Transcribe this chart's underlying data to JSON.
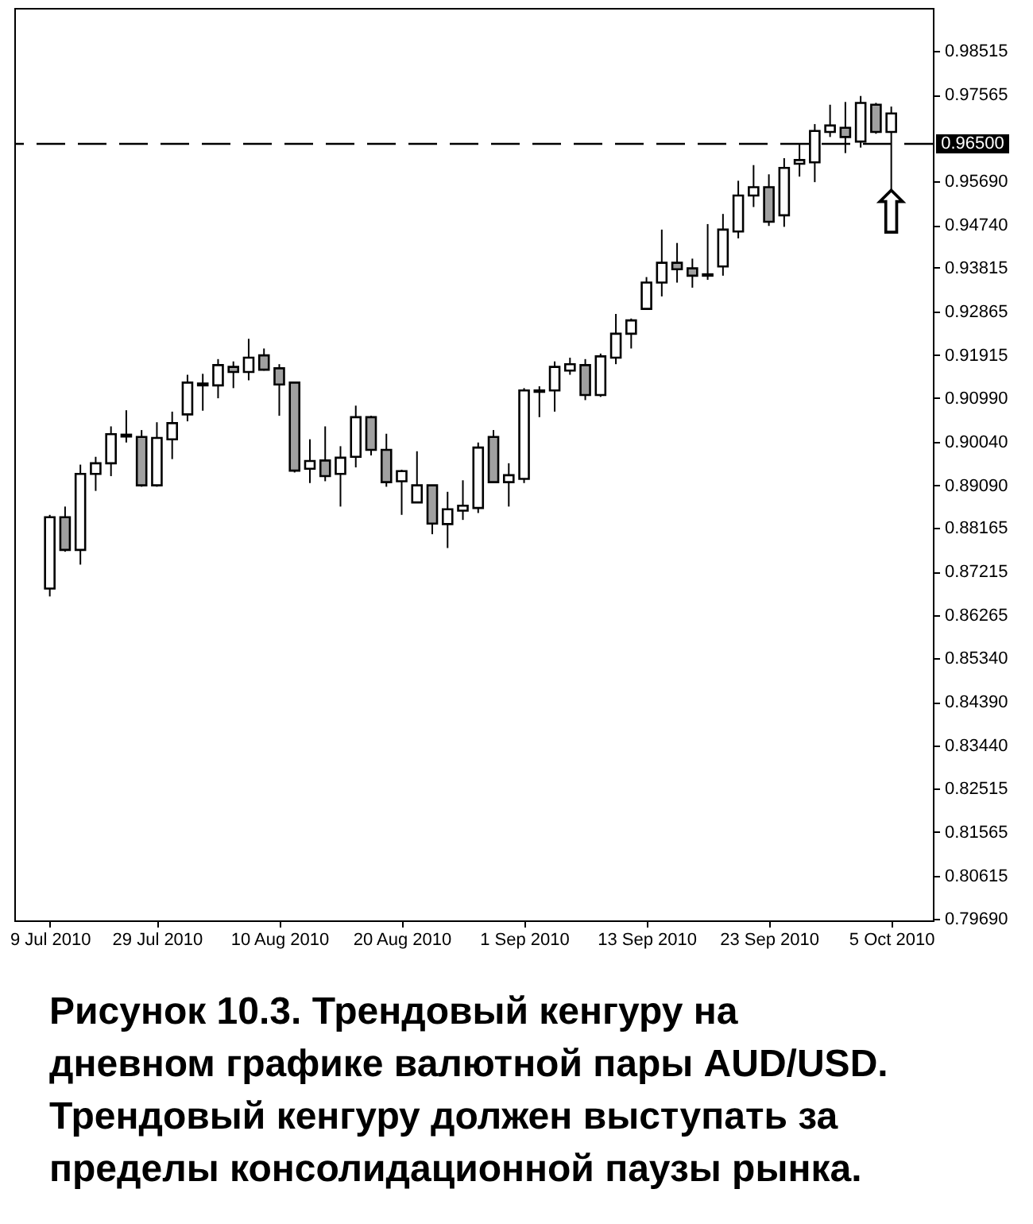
{
  "chart_data": {
    "type": "candlestick",
    "categories": [
      "9 Jul 2010",
      null,
      null,
      null,
      null,
      null,
      null,
      "29 Jul 2010",
      null,
      null,
      null,
      null,
      null,
      null,
      null,
      "10 Aug 2010",
      null,
      null,
      null,
      null,
      null,
      null,
      null,
      "20 Aug 2010",
      null,
      null,
      null,
      null,
      null,
      null,
      null,
      "1 Sep 2010",
      null,
      null,
      null,
      null,
      null,
      null,
      null,
      "13 Sep 2010",
      null,
      null,
      null,
      null,
      null,
      null,
      null,
      "23 Sep 2010",
      null,
      null,
      null,
      null,
      null,
      null,
      null,
      "5 Oct 2010"
    ],
    "ohlc": [
      [
        0.8685,
        0.8845,
        0.8668,
        0.884
      ],
      [
        0.884,
        0.8863,
        0.8765,
        0.8769
      ],
      [
        0.8769,
        0.8954,
        0.8737,
        0.8934
      ],
      [
        0.8934,
        0.8971,
        0.8897,
        0.8957
      ],
      [
        0.8957,
        0.9037,
        0.8929,
        0.902
      ],
      [
        0.9019,
        0.9072,
        0.9002,
        0.9015
      ],
      [
        0.9014,
        0.9029,
        0.8906,
        0.8909
      ],
      [
        0.8909,
        0.9046,
        0.8906,
        0.9012
      ],
      [
        0.9009,
        0.9069,
        0.8966,
        0.9044
      ],
      [
        0.9063,
        0.9149,
        0.9048,
        0.9132
      ],
      [
        0.913,
        0.9151,
        0.9071,
        0.9126
      ],
      [
        0.9126,
        0.9183,
        0.9098,
        0.917
      ],
      [
        0.9166,
        0.9178,
        0.912,
        0.9155
      ],
      [
        0.9155,
        0.9227,
        0.9137,
        0.9186
      ],
      [
        0.9191,
        0.9206,
        0.9158,
        0.916
      ],
      [
        0.9163,
        0.9172,
        0.906,
        0.9128
      ],
      [
        0.9132,
        0.9134,
        0.8937,
        0.8941
      ],
      [
        0.8945,
        0.9009,
        0.8914,
        0.8962
      ],
      [
        0.8963,
        0.9037,
        0.8918,
        0.8929
      ],
      [
        0.8934,
        0.8994,
        0.8863,
        0.8969
      ],
      [
        0.8971,
        0.9082,
        0.8948,
        0.9057
      ],
      [
        0.9057,
        0.906,
        0.8974,
        0.8986
      ],
      [
        0.8986,
        0.9021,
        0.8906,
        0.8916
      ],
      [
        0.8918,
        0.8943,
        0.8845,
        0.894
      ],
      [
        0.8872,
        0.8983,
        0.8871,
        0.8909
      ],
      [
        0.8909,
        0.8909,
        0.8803,
        0.8826
      ],
      [
        0.8825,
        0.8895,
        0.8773,
        0.8857
      ],
      [
        0.8854,
        0.892,
        0.8834,
        0.8865
      ],
      [
        0.886,
        0.9002,
        0.8849,
        0.8991
      ],
      [
        0.9014,
        0.9029,
        0.8916,
        0.8916
      ],
      [
        0.8916,
        0.8957,
        0.8863,
        0.8931
      ],
      [
        0.8923,
        0.912,
        0.8914,
        0.9115
      ],
      [
        0.9115,
        0.9124,
        0.9057,
        0.9112
      ],
      [
        0.9115,
        0.9178,
        0.9069,
        0.9166
      ],
      [
        0.9158,
        0.9186,
        0.9149,
        0.9172
      ],
      [
        0.917,
        0.9183,
        0.9094,
        0.9105
      ],
      [
        0.9105,
        0.9195,
        0.9101,
        0.9189
      ],
      [
        0.9186,
        0.9281,
        0.9172,
        0.9238
      ],
      [
        0.9238,
        0.9271,
        0.9206,
        0.9267
      ],
      [
        0.9292,
        0.9361,
        0.9292,
        0.9349
      ],
      [
        0.9349,
        0.9464,
        0.9319,
        0.9392
      ],
      [
        0.9392,
        0.9435,
        0.9349,
        0.9378
      ],
      [
        0.938,
        0.9401,
        0.9338,
        0.9364
      ],
      [
        0.9364,
        0.9476,
        0.9355,
        0.9367
      ],
      [
        0.9384,
        0.9498,
        0.9364,
        0.9464
      ],
      [
        0.946,
        0.957,
        0.9445,
        0.9538
      ],
      [
        0.9538,
        0.9604,
        0.9513,
        0.9556
      ],
      [
        0.9556,
        0.9584,
        0.9472,
        0.9481
      ],
      [
        0.9495,
        0.9619,
        0.947,
        0.9598
      ],
      [
        0.9607,
        0.9651,
        0.9579,
        0.9615
      ],
      [
        0.961,
        0.9693,
        0.9567,
        0.9678
      ],
      [
        0.9676,
        0.9735,
        0.9665,
        0.969
      ],
      [
        0.9685,
        0.9741,
        0.963,
        0.9665
      ],
      [
        0.9655,
        0.9754,
        0.9642,
        0.9739
      ],
      [
        0.9735,
        0.9739,
        0.9672,
        0.9676
      ],
      [
        0.9676,
        0.9731,
        0.9548,
        0.9716
      ]
    ],
    "colors": [
      "#ffffff",
      "#a0a0a0",
      "#ffffff",
      "#ffffff",
      "#ffffff",
      "#a0a0a0",
      "#a0a0a0",
      "#ffffff",
      "#ffffff",
      "#ffffff",
      "#a0a0a0",
      "#ffffff",
      "#a0a0a0",
      "#ffffff",
      "#a0a0a0",
      "#a0a0a0",
      "#a0a0a0",
      "#ffffff",
      "#a0a0a0",
      "#ffffff",
      "#ffffff",
      "#a0a0a0",
      "#a0a0a0",
      "#ffffff",
      "#ffffff",
      "#a0a0a0",
      "#ffffff",
      "#ffffff",
      "#ffffff",
      "#a0a0a0",
      "#ffffff",
      "#ffffff",
      "#a0a0a0",
      "#ffffff",
      "#ffffff",
      "#a0a0a0",
      "#ffffff",
      "#ffffff",
      "#ffffff",
      "#ffffff",
      "#ffffff",
      "#a0a0a0",
      "#a0a0a0",
      "#ffffff",
      "#ffffff",
      "#ffffff",
      "#ffffff",
      "#a0a0a0",
      "#ffffff",
      "#ffffff",
      "#ffffff",
      "#ffffff",
      "#a0a0a0",
      "#ffffff",
      "#a0a0a0",
      "#ffffff"
    ],
    "ylim": [
      0.7965,
      0.9945
    ],
    "yticks": [
      0.98515,
      0.97565,
      {
        "value": 0.9569,
        "label": "0.95690"
      },
      {
        "value": 0.9474,
        "label": "0.94740"
      },
      0.93815,
      0.92865,
      0.91915,
      {
        "value": 0.9099,
        "label": "0.90990"
      },
      {
        "value": 0.9004,
        "label": "0.90040"
      },
      {
        "value": 0.8909,
        "label": "0.89090"
      },
      0.88165,
      0.87215,
      0.86265,
      {
        "value": 0.8534,
        "label": "0.85340"
      },
      {
        "value": 0.8439,
        "label": "0.84390"
      },
      {
        "value": 0.8344,
        "label": "0.83440"
      },
      0.82515,
      0.81565,
      0.80615,
      {
        "value": 0.7969,
        "label": "0.79690"
      }
    ],
    "ref_lines": [
      {
        "axis": "y",
        "value": 0.965,
        "label": "0.96500",
        "color": "#000000",
        "line_style": "dashed"
      }
    ],
    "annotations": [
      {
        "text": "⇧",
        "x": "5 Oct 2010",
        "y": 0.9548
      },
      "Рисунок 10.3. Трендовый кенгуру на дневном графике валютной пары AUD/USD. Трендовый кенгуру должен выступать за пределы консолидационной паузы рынка."
    ]
  }
}
